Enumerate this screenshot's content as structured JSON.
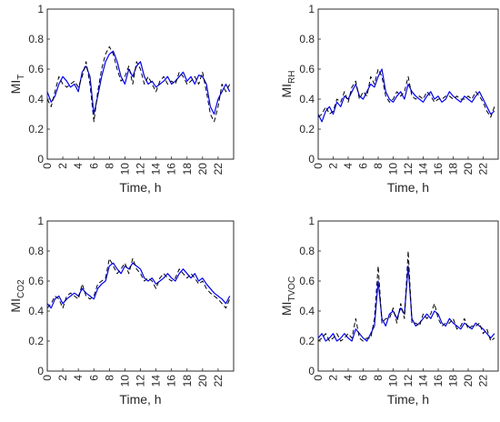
{
  "chart_data": [
    {
      "type": "line",
      "panel": "top-left",
      "title": "",
      "ylabel_main": "MI",
      "ylabel_sub": "T",
      "xlabel": "Time, h",
      "xlim": [
        0,
        24
      ],
      "ylim": [
        0,
        1
      ],
      "xticks": [
        0,
        2,
        4,
        6,
        8,
        10,
        12,
        14,
        16,
        18,
        20,
        22
      ],
      "yticks": [
        0,
        0.2,
        0.4,
        0.6,
        0.8,
        1
      ],
      "grid": false,
      "series": [
        {
          "color": "#0000ff",
          "style": "solid",
          "x": [
            0,
            0.5,
            1,
            1.5,
            2,
            2.5,
            3,
            3.5,
            4,
            4.5,
            5,
            5.5,
            6,
            6.5,
            7,
            7.5,
            8,
            8.5,
            9,
            9.5,
            10,
            10.5,
            11,
            11.5,
            12,
            12.5,
            13,
            13.5,
            14,
            14.5,
            15,
            15.5,
            16,
            16.5,
            17,
            17.5,
            18,
            18.5,
            19,
            19.5,
            20,
            20.5,
            21,
            21.5,
            22,
            22.5,
            23,
            23.5
          ],
          "values": [
            0.45,
            0.38,
            0.42,
            0.5,
            0.55,
            0.52,
            0.48,
            0.5,
            0.45,
            0.58,
            0.62,
            0.55,
            0.3,
            0.42,
            0.55,
            0.65,
            0.7,
            0.72,
            0.65,
            0.55,
            0.5,
            0.6,
            0.55,
            0.62,
            0.65,
            0.55,
            0.5,
            0.52,
            0.48,
            0.5,
            0.52,
            0.55,
            0.5,
            0.52,
            0.55,
            0.58,
            0.52,
            0.55,
            0.5,
            0.56,
            0.55,
            0.5,
            0.35,
            0.3,
            0.4,
            0.45,
            0.5,
            0.45
          ]
        },
        {
          "color": "#000000",
          "style": "dashed",
          "x": [
            0,
            0.5,
            1,
            1.5,
            2,
            2.5,
            3,
            3.5,
            4,
            4.5,
            5,
            5.5,
            6,
            6.5,
            7,
            7.5,
            8,
            8.5,
            9,
            9.5,
            10,
            10.5,
            11,
            11.5,
            12,
            12.5,
            13,
            13.5,
            14,
            14.5,
            15,
            15.5,
            16,
            16.5,
            17,
            17.5,
            18,
            18.5,
            19,
            19.5,
            20,
            20.5,
            21,
            21.5,
            22,
            22.5,
            23,
            23.5
          ],
          "values": [
            0.4,
            0.35,
            0.45,
            0.55,
            0.5,
            0.48,
            0.5,
            0.52,
            0.48,
            0.55,
            0.65,
            0.5,
            0.25,
            0.45,
            0.6,
            0.7,
            0.75,
            0.7,
            0.6,
            0.52,
            0.55,
            0.62,
            0.5,
            0.65,
            0.6,
            0.5,
            0.55,
            0.5,
            0.45,
            0.52,
            0.55,
            0.5,
            0.52,
            0.5,
            0.58,
            0.55,
            0.5,
            0.52,
            0.55,
            0.5,
            0.58,
            0.45,
            0.3,
            0.25,
            0.35,
            0.5,
            0.45,
            0.5
          ]
        }
      ]
    },
    {
      "type": "line",
      "panel": "top-right",
      "title": "",
      "ylabel_main": "MI",
      "ylabel_sub": "RH",
      "xlabel": "Time, h",
      "xlim": [
        0,
        24
      ],
      "ylim": [
        0,
        1
      ],
      "xticks": [
        0,
        2,
        4,
        6,
        8,
        10,
        12,
        14,
        16,
        18,
        20,
        22
      ],
      "yticks": [
        0,
        0.2,
        0.4,
        0.6,
        0.8,
        1
      ],
      "grid": false,
      "series": [
        {
          "color": "#0000ff",
          "style": "solid",
          "x": [
            0,
            0.5,
            1,
            1.5,
            2,
            2.5,
            3,
            3.5,
            4,
            4.5,
            5,
            5.5,
            6,
            6.5,
            7,
            7.5,
            8,
            8.5,
            9,
            9.5,
            10,
            10.5,
            11,
            11.5,
            12,
            12.5,
            13,
            13.5,
            14,
            14.5,
            15,
            15.5,
            16,
            16.5,
            17,
            17.5,
            18,
            18.5,
            19,
            19.5,
            20,
            20.5,
            21,
            21.5,
            22,
            22.5,
            23,
            23.5
          ],
          "values": [
            0.3,
            0.25,
            0.32,
            0.35,
            0.3,
            0.38,
            0.35,
            0.42,
            0.4,
            0.45,
            0.5,
            0.42,
            0.4,
            0.45,
            0.5,
            0.48,
            0.55,
            0.6,
            0.45,
            0.4,
            0.38,
            0.42,
            0.45,
            0.4,
            0.5,
            0.45,
            0.42,
            0.4,
            0.38,
            0.42,
            0.45,
            0.4,
            0.42,
            0.38,
            0.4,
            0.45,
            0.42,
            0.4,
            0.38,
            0.42,
            0.4,
            0.38,
            0.42,
            0.45,
            0.4,
            0.35,
            0.3,
            0.32
          ]
        },
        {
          "color": "#000000",
          "style": "dashed",
          "x": [
            0,
            0.5,
            1,
            1.5,
            2,
            2.5,
            3,
            3.5,
            4,
            4.5,
            5,
            5.5,
            6,
            6.5,
            7,
            7.5,
            8,
            8.5,
            9,
            9.5,
            10,
            10.5,
            11,
            11.5,
            12,
            12.5,
            13,
            13.5,
            14,
            14.5,
            15,
            15.5,
            16,
            16.5,
            17,
            17.5,
            18,
            18.5,
            19,
            19.5,
            20,
            20.5,
            21,
            21.5,
            22,
            22.5,
            23,
            23.5
          ],
          "values": [
            0.28,
            0.3,
            0.35,
            0.3,
            0.32,
            0.4,
            0.38,
            0.45,
            0.38,
            0.48,
            0.52,
            0.4,
            0.45,
            0.42,
            0.55,
            0.5,
            0.6,
            0.55,
            0.42,
            0.38,
            0.4,
            0.45,
            0.42,
            0.45,
            0.55,
            0.42,
            0.4,
            0.42,
            0.4,
            0.45,
            0.42,
            0.38,
            0.4,
            0.4,
            0.42,
            0.42,
            0.4,
            0.42,
            0.4,
            0.4,
            0.42,
            0.4,
            0.45,
            0.42,
            0.38,
            0.32,
            0.28,
            0.35
          ]
        }
      ]
    },
    {
      "type": "line",
      "panel": "bottom-left",
      "title": "",
      "ylabel_main": "MI",
      "ylabel_sub": "CO2",
      "xlabel": "Time, h",
      "xlim": [
        0,
        24
      ],
      "ylim": [
        0,
        1
      ],
      "xticks": [
        0,
        2,
        4,
        6,
        8,
        10,
        12,
        14,
        16,
        18,
        20,
        22
      ],
      "yticks": [
        0,
        0.2,
        0.4,
        0.6,
        0.8,
        1
      ],
      "grid": false,
      "series": [
        {
          "color": "#0000ff",
          "style": "solid",
          "x": [
            0,
            0.5,
            1,
            1.5,
            2,
            2.5,
            3,
            3.5,
            4,
            4.5,
            5,
            5.5,
            6,
            6.5,
            7,
            7.5,
            8,
            8.5,
            9,
            9.5,
            10,
            10.5,
            11,
            11.5,
            12,
            12.5,
            13,
            13.5,
            14,
            14.5,
            15,
            15.5,
            16,
            16.5,
            17,
            17.5,
            18,
            18.5,
            19,
            19.5,
            20,
            20.5,
            21,
            21.5,
            22,
            22.5,
            23,
            23.5
          ],
          "values": [
            0.45,
            0.42,
            0.48,
            0.5,
            0.45,
            0.48,
            0.5,
            0.52,
            0.5,
            0.55,
            0.52,
            0.5,
            0.48,
            0.55,
            0.58,
            0.6,
            0.7,
            0.72,
            0.68,
            0.65,
            0.7,
            0.68,
            0.72,
            0.7,
            0.68,
            0.62,
            0.6,
            0.62,
            0.58,
            0.6,
            0.62,
            0.65,
            0.62,
            0.6,
            0.65,
            0.68,
            0.65,
            0.62,
            0.65,
            0.6,
            0.62,
            0.58,
            0.55,
            0.52,
            0.5,
            0.48,
            0.45,
            0.5
          ]
        },
        {
          "color": "#000000",
          "style": "dashed",
          "x": [
            0,
            0.5,
            1,
            1.5,
            2,
            2.5,
            3,
            3.5,
            4,
            4.5,
            5,
            5.5,
            6,
            6.5,
            7,
            7.5,
            8,
            8.5,
            9,
            9.5,
            10,
            10.5,
            11,
            11.5,
            12,
            12.5,
            13,
            13.5,
            14,
            14.5,
            15,
            15.5,
            16,
            16.5,
            17,
            17.5,
            18,
            18.5,
            19,
            19.5,
            20,
            20.5,
            21,
            21.5,
            22,
            22.5,
            23,
            23.5
          ],
          "values": [
            0.42,
            0.45,
            0.5,
            0.48,
            0.42,
            0.5,
            0.52,
            0.5,
            0.48,
            0.58,
            0.5,
            0.48,
            0.5,
            0.58,
            0.6,
            0.62,
            0.75,
            0.7,
            0.65,
            0.68,
            0.72,
            0.65,
            0.75,
            0.68,
            0.65,
            0.6,
            0.62,
            0.6,
            0.55,
            0.62,
            0.65,
            0.62,
            0.6,
            0.62,
            0.68,
            0.65,
            0.62,
            0.65,
            0.62,
            0.58,
            0.6,
            0.55,
            0.52,
            0.5,
            0.48,
            0.45,
            0.42,
            0.48
          ]
        }
      ]
    },
    {
      "type": "line",
      "panel": "bottom-right",
      "title": "",
      "ylabel_main": "MI",
      "ylabel_sub": "TVOC",
      "xlabel": "Time, h",
      "xlim": [
        0,
        24
      ],
      "ylim": [
        0,
        1
      ],
      "xticks": [
        0,
        2,
        4,
        6,
        8,
        10,
        12,
        14,
        16,
        18,
        20,
        22
      ],
      "yticks": [
        0,
        0.2,
        0.4,
        0.6,
        0.8,
        1
      ],
      "grid": false,
      "series": [
        {
          "color": "#0000ff",
          "style": "solid",
          "x": [
            0,
            0.5,
            1,
            1.5,
            2,
            2.5,
            3,
            3.5,
            4,
            4.5,
            5,
            5.5,
            6,
            6.5,
            7,
            7.5,
            8,
            8.5,
            9,
            9.5,
            10,
            10.5,
            11,
            11.5,
            12,
            12.5,
            13,
            13.5,
            14,
            14.5,
            15,
            15.5,
            16,
            16.5,
            17,
            17.5,
            18,
            18.5,
            19,
            19.5,
            20,
            20.5,
            21,
            21.5,
            22,
            22.5,
            23,
            23.5
          ],
          "values": [
            0.22,
            0.25,
            0.2,
            0.22,
            0.25,
            0.2,
            0.22,
            0.25,
            0.22,
            0.2,
            0.28,
            0.25,
            0.22,
            0.2,
            0.25,
            0.3,
            0.6,
            0.35,
            0.3,
            0.38,
            0.4,
            0.35,
            0.42,
            0.38,
            0.7,
            0.35,
            0.3,
            0.32,
            0.35,
            0.38,
            0.35,
            0.4,
            0.38,
            0.32,
            0.3,
            0.35,
            0.32,
            0.3,
            0.28,
            0.32,
            0.3,
            0.28,
            0.32,
            0.3,
            0.28,
            0.25,
            0.22,
            0.25
          ]
        },
        {
          "color": "#000000",
          "style": "dashed",
          "x": [
            0,
            0.5,
            1,
            1.5,
            2,
            2.5,
            3,
            3.5,
            4,
            4.5,
            5,
            5.5,
            6,
            6.5,
            7,
            7.5,
            8,
            8.5,
            9,
            9.5,
            10,
            10.5,
            11,
            11.5,
            12,
            12.5,
            13,
            13.5,
            14,
            14.5,
            15,
            15.5,
            16,
            16.5,
            17,
            17.5,
            18,
            18.5,
            19,
            19.5,
            20,
            20.5,
            21,
            21.5,
            22,
            22.5,
            23,
            23.5
          ],
          "values": [
            0.2,
            0.22,
            0.25,
            0.2,
            0.22,
            0.25,
            0.2,
            0.22,
            0.25,
            0.22,
            0.35,
            0.22,
            0.2,
            0.22,
            0.22,
            0.35,
            0.7,
            0.32,
            0.35,
            0.35,
            0.42,
            0.32,
            0.45,
            0.35,
            0.8,
            0.32,
            0.32,
            0.3,
            0.38,
            0.35,
            0.38,
            0.45,
            0.35,
            0.3,
            0.32,
            0.32,
            0.35,
            0.28,
            0.3,
            0.35,
            0.28,
            0.3,
            0.3,
            0.32,
            0.25,
            0.28,
            0.2,
            0.22
          ]
        }
      ]
    }
  ]
}
